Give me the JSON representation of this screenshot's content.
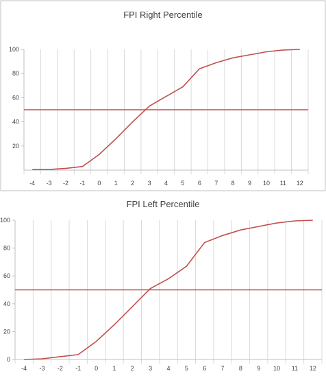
{
  "chart_data": [
    {
      "type": "line",
      "title": "FPI Right Percentile",
      "xlabel": "",
      "ylabel": "",
      "x_ticks": [
        "-4",
        "-3",
        "-2",
        "-1",
        "0",
        "1",
        "2",
        "3",
        "4",
        "5",
        "6",
        "7",
        "8",
        "9",
        "10",
        "11",
        "12"
      ],
      "y_ticks": [
        "20",
        "40",
        "60",
        "80",
        "100"
      ],
      "xlim": [
        -4.5,
        12.5
      ],
      "ylim": [
        0,
        100
      ],
      "grid": "vertical",
      "series": [
        {
          "name": "",
          "color": "#c0504d",
          "x": [
            -4,
            -3,
            -2,
            -1,
            0,
            1,
            2,
            3,
            4,
            5,
            6,
            7,
            8,
            9,
            10,
            11,
            12
          ],
          "y": [
            0.5,
            0.5,
            1.5,
            3,
            13,
            26,
            40,
            53,
            61,
            69,
            84,
            89,
            93,
            95.5,
            98,
            99.5,
            100
          ]
        },
        {
          "name": "",
          "color": "#c0504d",
          "x": [
            -4.5,
            12.5
          ],
          "y": [
            50,
            50
          ]
        }
      ]
    },
    {
      "type": "line",
      "title": "FPI Left Percentile",
      "xlabel": "",
      "ylabel": "",
      "x_ticks": [
        "-4",
        "-3",
        "-2",
        "-1",
        "0",
        "1",
        "2",
        "3",
        "4",
        "5",
        "6",
        "7",
        "8",
        "9",
        "10",
        "11",
        "12"
      ],
      "y_ticks": [
        "0",
        "20",
        "40",
        "60",
        "80",
        "100"
      ],
      "xlim": [
        -4.5,
        12.5
      ],
      "ylim": [
        0,
        100
      ],
      "grid": "vertical",
      "series": [
        {
          "name": "",
          "color": "#c0504d",
          "x": [
            -4,
            -3,
            -2,
            -1,
            0,
            1,
            2,
            3,
            4,
            5,
            6,
            7,
            8,
            9,
            10,
            11,
            12
          ],
          "y": [
            0,
            0.5,
            2,
            3.5,
            13,
            25,
            38,
            51,
            58,
            67,
            84,
            89,
            93,
            95.5,
            98,
            99.5,
            100
          ]
        },
        {
          "name": "",
          "color": "#c0504d",
          "x": [
            -4.5,
            12.5
          ],
          "y": [
            50,
            50
          ]
        }
      ]
    }
  ]
}
